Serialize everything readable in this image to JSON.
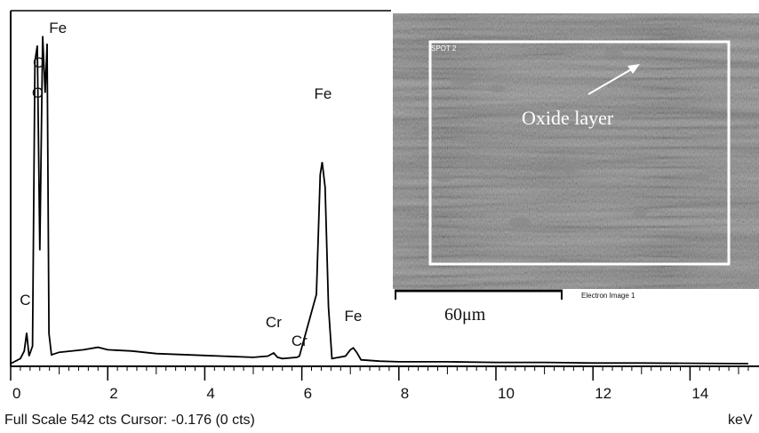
{
  "chart_data": {
    "type": "line",
    "xlabel": "keV",
    "xlim": [
      0,
      15.2
    ],
    "x_ticks": [
      0,
      2,
      4,
      6,
      8,
      10,
      12,
      14
    ],
    "x_tick_labels": [
      "0",
      "2",
      "4",
      "6",
      "8",
      "10",
      "12",
      "14"
    ],
    "grid": false,
    "legend": "none",
    "footer": "Full Scale 542 cts Cursor: -0.176  (0 cts)",
    "spectrum": {
      "x": [
        0.0,
        0.2,
        0.28,
        0.33,
        0.38,
        0.45,
        0.5,
        0.55,
        0.6,
        0.66,
        0.71,
        0.75,
        0.79,
        0.84,
        1.0,
        1.5,
        1.8,
        2.0,
        2.5,
        3.0,
        4.0,
        5.0,
        5.3,
        5.42,
        5.5,
        5.6,
        5.9,
        5.95,
        6.3,
        6.38,
        6.42,
        6.48,
        6.55,
        6.62,
        6.9,
        7.0,
        7.06,
        7.13,
        7.22,
        7.6,
        8.0,
        9.0,
        10.0,
        11.0,
        12.0,
        13.0,
        15.2
      ],
      "y": [
        0,
        8,
        20,
        49,
        12,
        28,
        480,
        505,
        180,
        520,
        430,
        508,
        48,
        14,
        18,
        22,
        26,
        22,
        20,
        16,
        13,
        10,
        12,
        17,
        10,
        8,
        10,
        12,
        110,
        300,
        320,
        280,
        90,
        8,
        12,
        22,
        25,
        18,
        6,
        4,
        3,
        3,
        2,
        2,
        1,
        1,
        0
      ],
      "ylim": [
        0,
        542
      ]
    },
    "annotations": [
      {
        "text": "C",
        "x": 0.28
      },
      {
        "text": "Fe",
        "x": 0.72
      },
      {
        "text": "O",
        "x": 0.55
      },
      {
        "text": "O",
        "x": 0.62
      },
      {
        "text": "Fe",
        "x": 6.42
      },
      {
        "text": "Cr",
        "x": 5.42
      },
      {
        "text": "Cr",
        "x": 5.95
      },
      {
        "text": "Fe",
        "x": 7.06
      }
    ]
  },
  "inset": {
    "spot_label": "SPOT 2",
    "annotation": "Oxide layer",
    "scale_bar_label": "60μm",
    "caption": "Electron Image 1"
  }
}
